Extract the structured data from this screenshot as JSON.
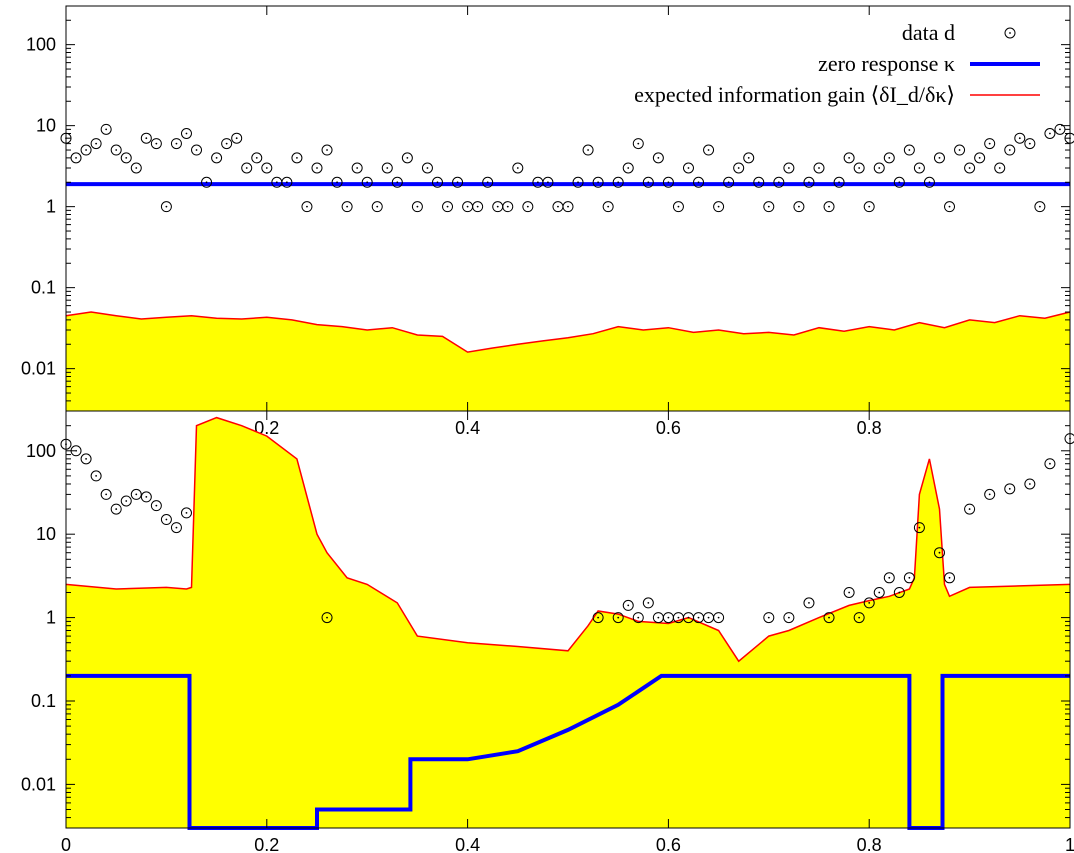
{
  "chart_data": [
    {
      "type": "scatter",
      "panel": "top",
      "xlim": [
        0,
        1
      ],
      "ylim": [
        0.003,
        300
      ],
      "yscale": "log",
      "grid": false,
      "legend_position": "top-right",
      "yticks": [
        {
          "value": 0.01,
          "label": "0.01"
        },
        {
          "value": 0.1,
          "label": "0.1"
        },
        {
          "value": 1,
          "label": "1"
        },
        {
          "value": 10,
          "label": "10"
        },
        {
          "value": 100,
          "label": "100"
        }
      ],
      "xticks": [
        {
          "value": 0.2,
          "label": "0.2"
        },
        {
          "value": 0.4,
          "label": "0.4"
        },
        {
          "value": 0.6,
          "label": "0.6"
        },
        {
          "value": 0.8,
          "label": "0.8"
        }
      ],
      "series": [
        {
          "name": "data d",
          "kind": "points",
          "color": "#000000",
          "x": [
            0.0,
            0.01,
            0.02,
            0.03,
            0.04,
            0.05,
            0.06,
            0.07,
            0.08,
            0.09,
            0.1,
            0.11,
            0.12,
            0.13,
            0.14,
            0.15,
            0.16,
            0.17,
            0.18,
            0.19,
            0.2,
            0.21,
            0.22,
            0.23,
            0.24,
            0.25,
            0.26,
            0.27,
            0.28,
            0.29,
            0.3,
            0.31,
            0.32,
            0.33,
            0.34,
            0.35,
            0.36,
            0.37,
            0.38,
            0.39,
            0.4,
            0.41,
            0.42,
            0.43,
            0.44,
            0.45,
            0.46,
            0.47,
            0.48,
            0.49,
            0.5,
            0.51,
            0.52,
            0.53,
            0.54,
            0.55,
            0.56,
            0.57,
            0.58,
            0.59,
            0.6,
            0.61,
            0.62,
            0.63,
            0.64,
            0.65,
            0.66,
            0.67,
            0.68,
            0.69,
            0.7,
            0.71,
            0.72,
            0.73,
            0.74,
            0.75,
            0.76,
            0.77,
            0.78,
            0.79,
            0.8,
            0.81,
            0.82,
            0.83,
            0.84,
            0.85,
            0.86,
            0.87,
            0.88,
            0.89,
            0.9,
            0.91,
            0.92,
            0.93,
            0.94,
            0.95,
            0.96,
            0.97,
            0.98,
            0.99,
            1.0
          ],
          "y": [
            7,
            4,
            5,
            6,
            9,
            5,
            4,
            3,
            7,
            6,
            1,
            6,
            8,
            5,
            2,
            4,
            6,
            7,
            3,
            4,
            3,
            2,
            2,
            4,
            1,
            3,
            5,
            2,
            1,
            3,
            2,
            1,
            3,
            2,
            4,
            1,
            3,
            2,
            1,
            2,
            1,
            1,
            2,
            1,
            1,
            3,
            1,
            2,
            2,
            1,
            1,
            2,
            5,
            2,
            1,
            2,
            3,
            6,
            2,
            4,
            2,
            1,
            3,
            2,
            5,
            1,
            2,
            3,
            4,
            2,
            1,
            2,
            3,
            1,
            2,
            3,
            1,
            2,
            4,
            3,
            1,
            3,
            4,
            2,
            5,
            3,
            2,
            4,
            1,
            5,
            3,
            4,
            6,
            3,
            5,
            7,
            6,
            1,
            8,
            9,
            7
          ]
        },
        {
          "name": "zero response κ",
          "kind": "line",
          "color": "#0000ff",
          "x": [
            0,
            1
          ],
          "y": [
            1.9,
            1.9
          ]
        },
        {
          "name": "expected information gain ⟨δI_d/δκ⟩",
          "kind": "area",
          "color": "#ff0000",
          "fill": "#ffff00",
          "x": [
            0.0,
            0.025,
            0.05,
            0.075,
            0.1,
            0.125,
            0.15,
            0.175,
            0.2,
            0.225,
            0.25,
            0.275,
            0.3,
            0.325,
            0.35,
            0.375,
            0.4,
            0.425,
            0.45,
            0.475,
            0.5,
            0.525,
            0.55,
            0.575,
            0.6,
            0.625,
            0.65,
            0.675,
            0.7,
            0.725,
            0.75,
            0.775,
            0.8,
            0.825,
            0.85,
            0.875,
            0.9,
            0.925,
            0.95,
            0.975,
            1.0
          ],
          "y": [
            0.045,
            0.05,
            0.045,
            0.041,
            0.043,
            0.045,
            0.042,
            0.041,
            0.043,
            0.04,
            0.035,
            0.033,
            0.03,
            0.032,
            0.026,
            0.025,
            0.016,
            0.018,
            0.02,
            0.022,
            0.024,
            0.027,
            0.033,
            0.03,
            0.032,
            0.028,
            0.03,
            0.027,
            0.028,
            0.026,
            0.032,
            0.029,
            0.033,
            0.03,
            0.037,
            0.032,
            0.04,
            0.037,
            0.045,
            0.042,
            0.05
          ]
        }
      ]
    },
    {
      "type": "scatter",
      "panel": "bottom",
      "xlim": [
        0,
        1
      ],
      "ylim": [
        0.003,
        300
      ],
      "yscale": "log",
      "grid": false,
      "yticks": [
        {
          "value": 0.01,
          "label": "0.01"
        },
        {
          "value": 0.1,
          "label": "0.1"
        },
        {
          "value": 1,
          "label": "1"
        },
        {
          "value": 10,
          "label": "10"
        },
        {
          "value": 100,
          "label": "100"
        }
      ],
      "xticks": [
        {
          "value": 0,
          "label": "0"
        },
        {
          "value": 0.2,
          "label": "0.2"
        },
        {
          "value": 0.4,
          "label": "0.4"
        },
        {
          "value": 0.6,
          "label": "0.6"
        },
        {
          "value": 0.8,
          "label": "0.8"
        },
        {
          "value": 1,
          "label": "1"
        }
      ],
      "series": [
        {
          "name": "data d",
          "kind": "points",
          "color": "#000000",
          "x": [
            0.0,
            0.01,
            0.02,
            0.03,
            0.04,
            0.05,
            0.06,
            0.07,
            0.08,
            0.09,
            0.1,
            0.11,
            0.12,
            0.26,
            0.53,
            0.55,
            0.56,
            0.57,
            0.58,
            0.59,
            0.6,
            0.61,
            0.62,
            0.63,
            0.64,
            0.65,
            0.7,
            0.72,
            0.74,
            0.76,
            0.78,
            0.79,
            0.8,
            0.81,
            0.82,
            0.83,
            0.84,
            0.85,
            0.87,
            0.88,
            0.9,
            0.92,
            0.94,
            0.96,
            0.98,
            1.0
          ],
          "y": [
            120,
            100,
            80,
            50,
            30,
            20,
            25,
            30,
            28,
            22,
            15,
            12,
            18,
            1,
            1,
            1,
            1.4,
            1,
            1.5,
            1,
            1,
            1,
            1,
            1,
            1,
            1,
            1,
            1,
            1.5,
            1,
            2,
            1,
            1.5,
            2,
            3,
            2,
            3,
            12,
            6,
            3,
            20,
            30,
            35,
            40,
            70,
            140
          ]
        },
        {
          "name": "zero response κ",
          "kind": "line",
          "color": "#0000ff",
          "x": [
            0,
            0.123,
            0.123,
            0.25,
            0.25,
            0.343,
            0.343,
            0.4,
            0.45,
            0.5,
            0.55,
            0.593,
            0.84,
            0.84,
            0.873,
            0.873,
            1.0
          ],
          "y": [
            0.2,
            0.2,
            0.003,
            0.003,
            0.005,
            0.005,
            0.02,
            0.02,
            0.025,
            0.045,
            0.09,
            0.2,
            0.2,
            0.003,
            0.003,
            0.2,
            0.2
          ]
        },
        {
          "name": "expected information gain ⟨δI_d/δκ⟩",
          "kind": "area",
          "color": "#ff0000",
          "fill": "#ffff00",
          "x": [
            0.0,
            0.05,
            0.1,
            0.12,
            0.125,
            0.13,
            0.15,
            0.175,
            0.2,
            0.23,
            0.25,
            0.26,
            0.28,
            0.3,
            0.33,
            0.35,
            0.4,
            0.45,
            0.5,
            0.52,
            0.53,
            0.55,
            0.57,
            0.6,
            0.62,
            0.65,
            0.67,
            0.7,
            0.72,
            0.75,
            0.78,
            0.8,
            0.82,
            0.84,
            0.845,
            0.85,
            0.86,
            0.87,
            0.875,
            0.88,
            0.9,
            0.95,
            1.0
          ],
          "y": [
            2.5,
            2.2,
            2.3,
            2.2,
            2.3,
            200,
            250,
            200,
            150,
            80,
            10,
            6,
            3,
            2.5,
            1.5,
            0.6,
            0.5,
            0.45,
            0.4,
            0.8,
            1.2,
            1.1,
            0.9,
            0.85,
            1.0,
            0.7,
            0.3,
            0.6,
            0.7,
            1.0,
            1.4,
            1.6,
            1.8,
            2.2,
            3.0,
            30,
            80,
            20,
            2.5,
            1.8,
            2.3,
            2.4,
            2.5
          ]
        }
      ]
    }
  ]
}
